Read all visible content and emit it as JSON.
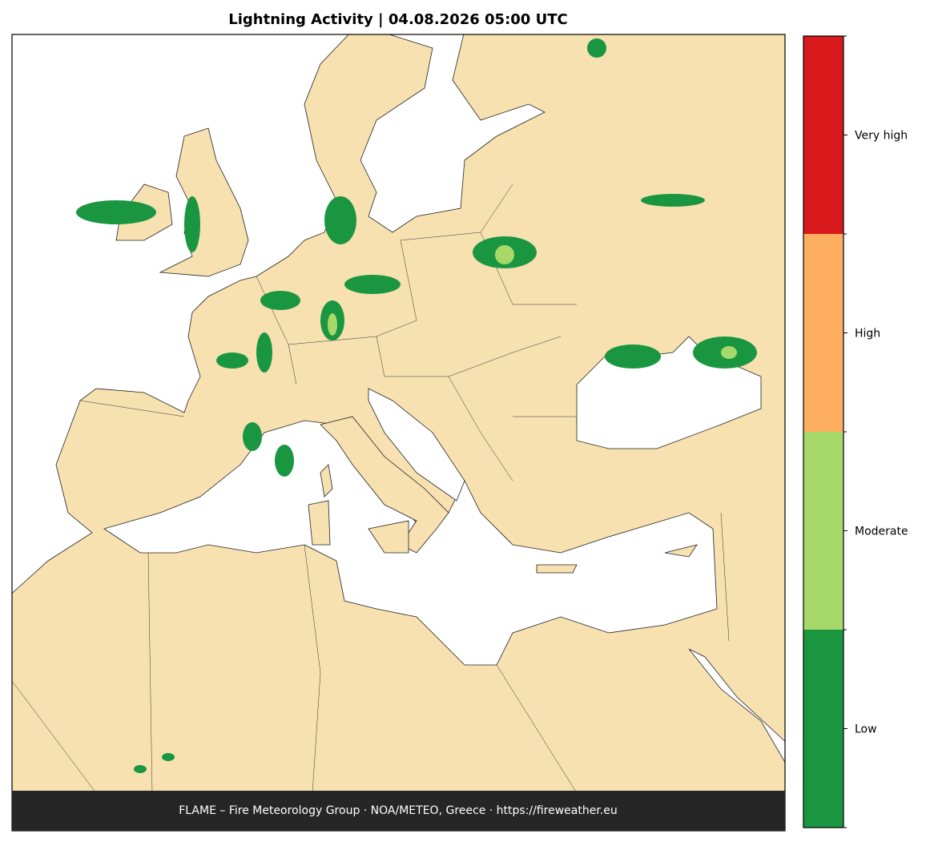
{
  "title": "Lightning Activity  |  04.08.2026 05:00 UTC",
  "footer": "FLAME – Fire Meteorology Group · NOA/METEO, Greece · https://fireweather.eu",
  "legend": {
    "levels": [
      {
        "label": "Low",
        "color": "#1a9641"
      },
      {
        "label": "Moderate",
        "color": "#a6d96a"
      },
      {
        "label": "High",
        "color": "#fdae61"
      },
      {
        "label": "Very high",
        "color": "#d7191c"
      }
    ]
  }
}
